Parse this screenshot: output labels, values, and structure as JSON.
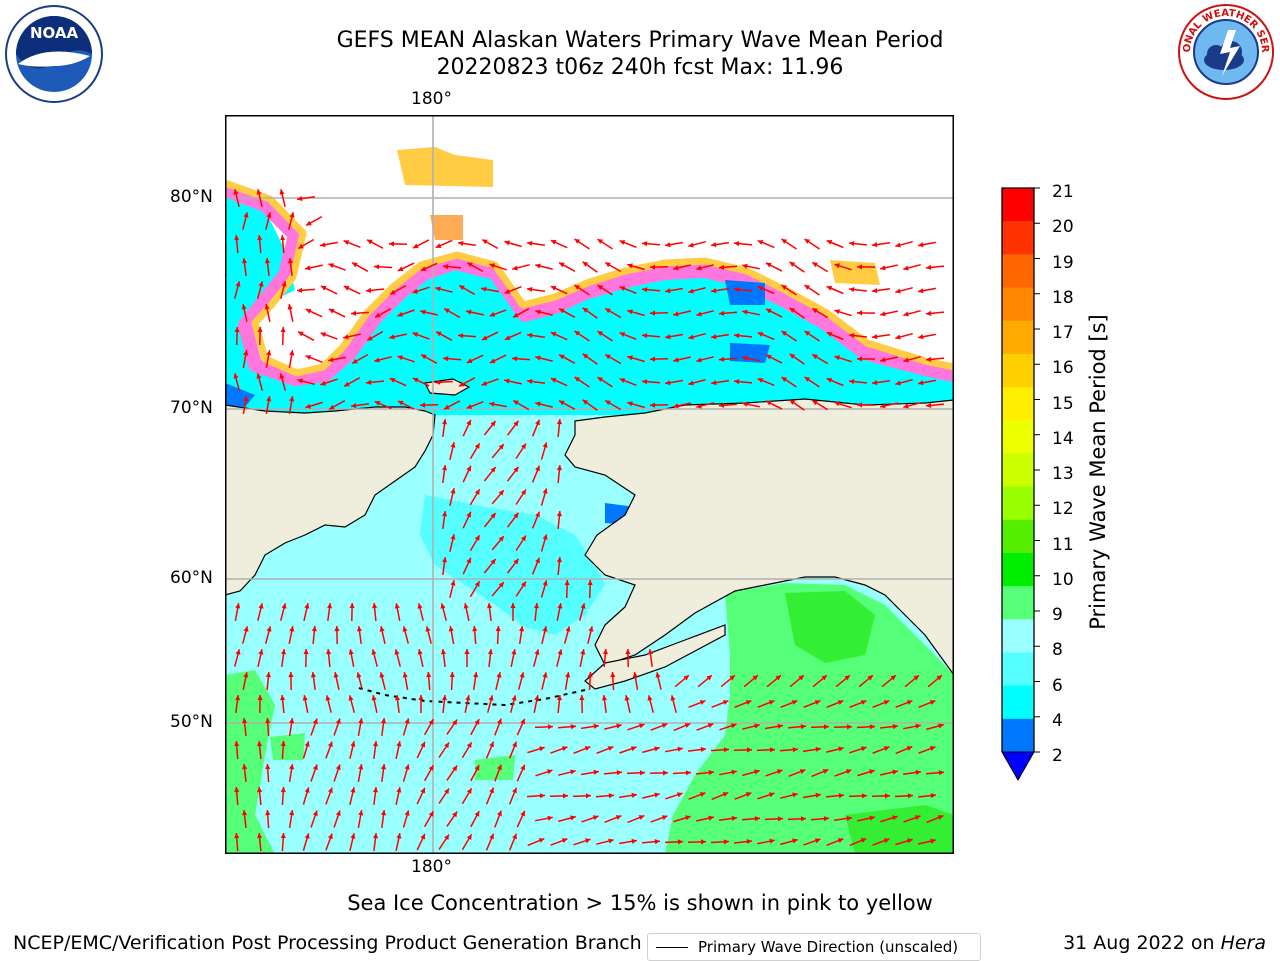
{
  "title": {
    "line1": "GEFS MEAN Alaskan Waters Primary Wave Mean Period",
    "line2": "20220823 t06z 240h fcst   Max: 11.96"
  },
  "map": {
    "lon_label_top": "180°",
    "lon_label_bottom": "180°",
    "lat_labels": [
      "80°N",
      "70°N",
      "60°N",
      "50°N"
    ],
    "legend_label": "Primary Wave Direction (unscaled)",
    "land_color": "#efeddc",
    "arrow_color": "#ff0000"
  },
  "colorbar": {
    "label": "Primary Wave Mean Period [s]",
    "ticks": [
      "21",
      "20",
      "19",
      "18",
      "17",
      "16",
      "15",
      "14",
      "13",
      "12",
      "11",
      "10",
      "9",
      "8",
      "6",
      "4",
      "2"
    ],
    "colors": [
      "#ff0000",
      "#ff3300",
      "#ff6600",
      "#ff8800",
      "#ffaa00",
      "#ffd000",
      "#ffee00",
      "#eeff00",
      "#ccff00",
      "#99ff00",
      "#55ee00",
      "#00ee00",
      "#55ff77",
      "#99ffff",
      "#55ffff",
      "#00ffff",
      "#0077ff"
    ],
    "extend_color": "#0000ff"
  },
  "caption": "Sea Ice Concentration > 15% is shown in pink to yellow",
  "footer": {
    "left": "NCEP/EMC/Verification Post Processing Product Generation Branch",
    "date": "31 Aug 2022 on ",
    "host": "Hera"
  },
  "logos": {
    "noaa": "NOAA",
    "nws": "NATIONAL WEATHER SERVICE"
  }
}
